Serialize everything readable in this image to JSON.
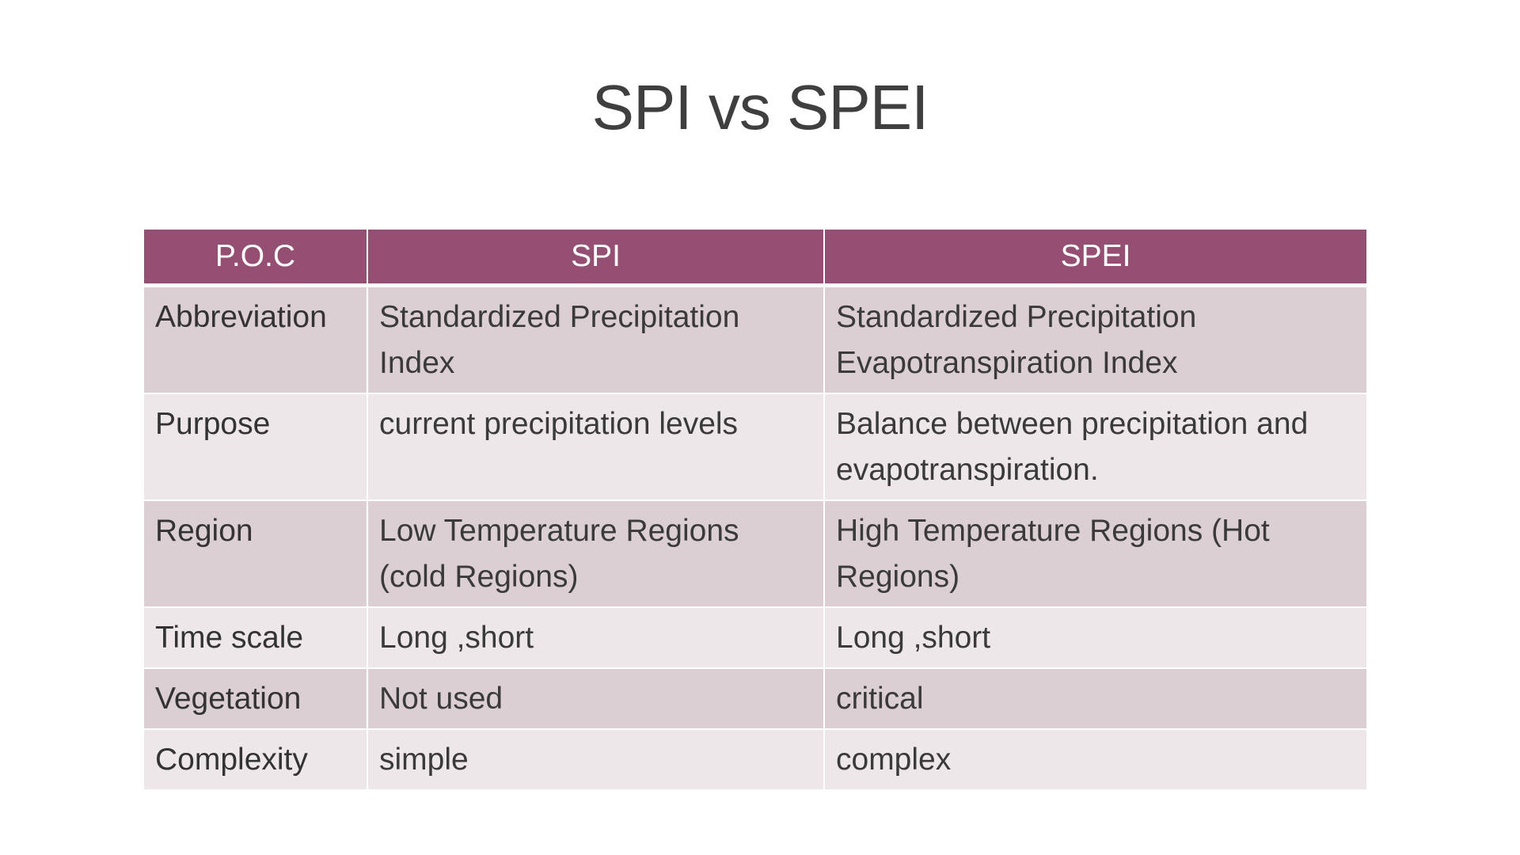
{
  "slide": {
    "title": "SPI vs SPEI"
  },
  "table": {
    "headers": [
      "P.O.C",
      "SPI",
      "SPEI"
    ],
    "rows": [
      {
        "label": "Abbreviation",
        "spi": "Standardized Precipitation Index",
        "spei": "Standardized Precipitation Evapotranspiration Index"
      },
      {
        "label": "Purpose",
        "spi": "current precipitation levels",
        "spei": "Balance between precipitation and evapotranspiration."
      },
      {
        "label": "Region",
        "spi": "Low Temperature Regions (cold Regions)",
        "spei": "High Temperature Regions (Hot Regions)"
      },
      {
        "label": "Time scale",
        "spi": "Long ,short",
        "spei": "Long ,short"
      },
      {
        "label": "Vegetation",
        "spi": "Not used",
        "spei": "critical"
      },
      {
        "label": "Complexity",
        "spi": "simple",
        "spei": "complex"
      }
    ]
  },
  "colors": {
    "header_bg": "#954f72",
    "row_band_dark": "#dccfd4",
    "row_band_light": "#eee7ea",
    "title_text": "#3f3f3f"
  }
}
